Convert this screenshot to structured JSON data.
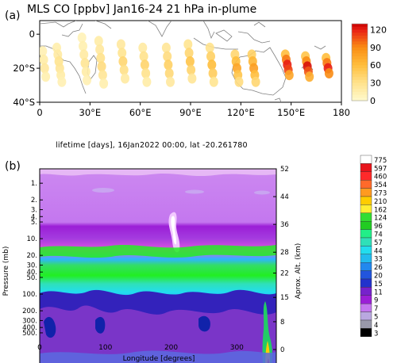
{
  "figure": {
    "label_a": "(a)",
    "label_b": "(b)"
  },
  "panel_a": {
    "title": "MLS CO [ppbv] Jan16-24 21 hPa in-plume"
  },
  "panel_b": {
    "title": "lifetime [days], 16Jan2022 00:00, lat -20.261780"
  },
  "colors": {
    "plume_low": "#fff6c4",
    "plume_mid": "#ffb300",
    "plume_high": "#e8141b",
    "map_coast": "#808080",
    "band_purple": "#cc66ee",
    "band_green": "#33dd33",
    "band_blue": "#2233cc"
  },
  "chart_data": [
    {
      "type": "scatter",
      "title": "MLS CO [ppbv] Jan16-24 21 hPa in-plume",
      "x_ticks": [
        "0",
        "30°E",
        "60°E",
        "90°E",
        "120°E",
        "150°E",
        "180"
      ],
      "y_ticks": [
        "0",
        "20°S",
        "40°S"
      ],
      "xlim": [
        0,
        180
      ],
      "ylim": [
        -40,
        8
      ],
      "colorbar": {
        "ticks": [
          "120",
          "90",
          "60",
          "30",
          "0"
        ],
        "range": [
          0,
          130
        ]
      },
      "tracks": [
        {
          "lon": 3,
          "lats": [
            -10,
            -15,
            -20,
            -25
          ],
          "values": [
            12,
            18,
            22,
            14
          ]
        },
        {
          "lon": 12,
          "lats": [
            -8,
            -12,
            -16,
            -20,
            -24,
            -28
          ],
          "values": [
            15,
            20,
            28,
            25,
            18,
            12
          ]
        },
        {
          "lon": 27,
          "lats": [
            -2,
            -7,
            -12,
            -17,
            -22,
            -27
          ],
          "values": [
            10,
            14,
            20,
            26,
            18,
            12
          ]
        },
        {
          "lon": 37,
          "lats": [
            -4,
            -9,
            -14,
            -19,
            -24,
            -29
          ],
          "values": [
            18,
            22,
            30,
            35,
            25,
            15
          ]
        },
        {
          "lon": 50,
          "lats": [
            -6,
            -11,
            -16,
            -21,
            -26
          ],
          "values": [
            22,
            28,
            40,
            32,
            20
          ]
        },
        {
          "lon": 63,
          "lats": [
            -8,
            -13,
            -18,
            -23,
            -28
          ],
          "values": [
            20,
            30,
            42,
            30,
            18
          ]
        },
        {
          "lon": 77,
          "lats": [
            -8,
            -13,
            -18,
            -23,
            -28
          ],
          "values": [
            25,
            35,
            45,
            38,
            22
          ]
        },
        {
          "lon": 90,
          "lats": [
            -6,
            -11,
            -16,
            -21,
            -26
          ],
          "values": [
            28,
            40,
            55,
            42,
            25
          ]
        },
        {
          "lon": 103,
          "lats": [
            -8,
            -13,
            -18,
            -23,
            -28
          ],
          "values": [
            30,
            45,
            60,
            48,
            28
          ]
        },
        {
          "lon": 118,
          "lats": [
            -12,
            -16,
            -20,
            -24,
            -28
          ],
          "values": [
            40,
            60,
            75,
            55,
            35
          ]
        },
        {
          "lon": 128,
          "lats": [
            -12,
            -16,
            -20,
            -24,
            -28
          ],
          "values": [
            45,
            65,
            80,
            60,
            40
          ]
        },
        {
          "lon": 148,
          "lats": [
            -12,
            -15,
            -18,
            -21,
            -24
          ],
          "values": [
            60,
            95,
            120,
            110,
            75
          ]
        },
        {
          "lon": 160,
          "lats": [
            -13,
            -16,
            -19,
            -22,
            -25
          ],
          "values": [
            55,
            90,
            125,
            105,
            70
          ]
        },
        {
          "lon": 172,
          "lats": [
            -14,
            -17,
            -20,
            -23
          ],
          "values": [
            60,
            95,
            120,
            90
          ]
        }
      ]
    },
    {
      "type": "heatmap",
      "title": "lifetime [days], 16Jan2022 00:00, lat -20.261780",
      "xlabel": "Longitude [degrees]",
      "ylabel": "Pressure (mb)",
      "y2label": "Aprox. Alt. (km)",
      "x_ticks": [
        "0",
        "100",
        "200",
        "300"
      ],
      "xlim": [
        0,
        360
      ],
      "y_ticks_left": [
        "1.",
        "2.",
        "3.",
        "4.",
        "5.",
        "10.",
        "20.",
        "30.",
        "40.",
        "50.",
        "100.",
        "200.",
        "300.",
        "400.",
        "500."
      ],
      "y_ticks_right": [
        "52",
        "44",
        "36",
        "28",
        "22",
        "15",
        "8",
        "0"
      ],
      "colorbar_levels": [
        "775",
        "597",
        "460",
        "354",
        "273",
        "210",
        "162",
        "124",
        "96",
        "74",
        "57",
        "44",
        "33",
        "26",
        "20",
        "15",
        "11",
        "9",
        "7",
        "5",
        "4",
        "3"
      ]
    }
  ]
}
